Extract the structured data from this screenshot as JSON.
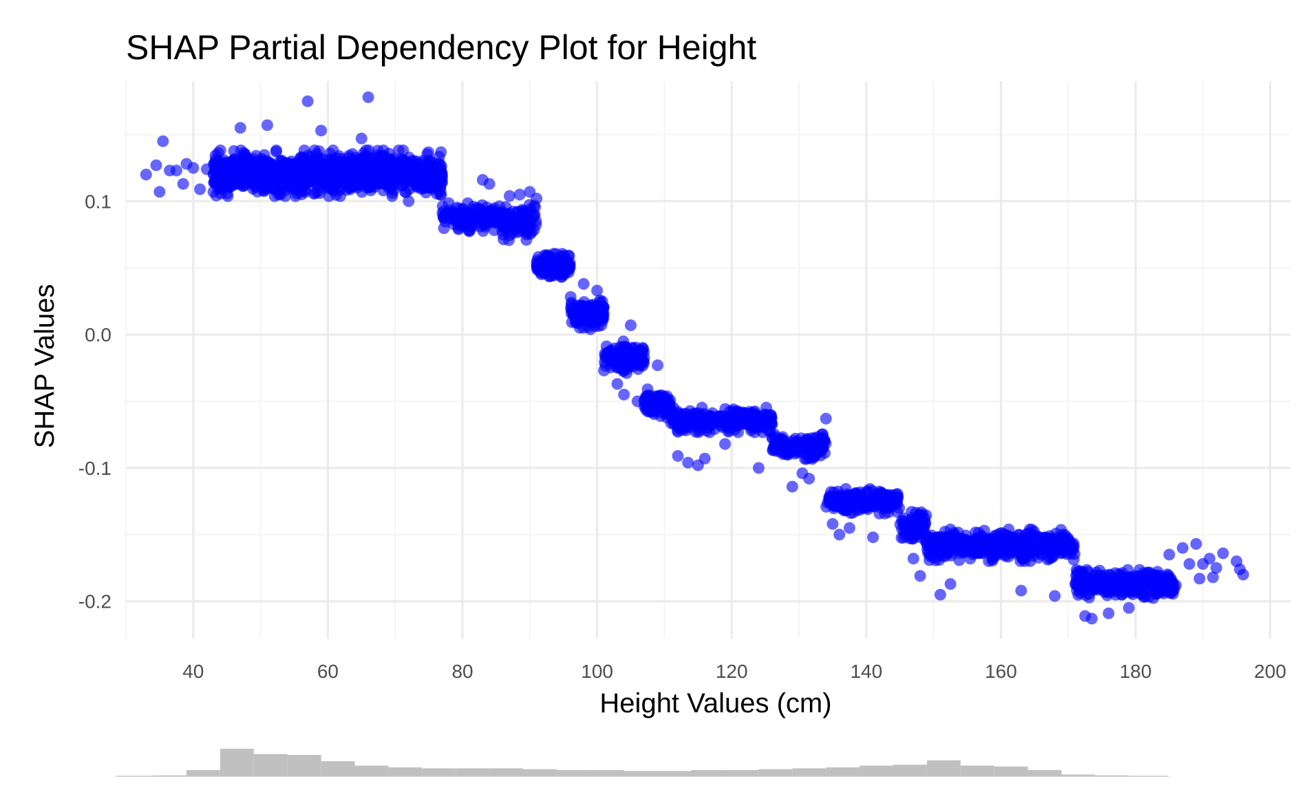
{
  "chart_data": {
    "type": "scatter",
    "title": "SHAP Partial Dependency Plot for Height",
    "xlabel": "Height Values (cm)",
    "ylabel": "SHAP Values",
    "xlim": [
      30,
      203
    ],
    "ylim": [
      -0.228,
      0.19
    ],
    "x_ticks": [
      40,
      60,
      80,
      100,
      120,
      140,
      160,
      180,
      200
    ],
    "x_tick_labels": [
      "40",
      "60",
      "80",
      "100",
      "120",
      "140",
      "160",
      "180",
      "200"
    ],
    "y_ticks": [
      0.1,
      0.0,
      -0.1,
      -0.2
    ],
    "y_tick_labels": [
      "0.1",
      "0.0",
      "-0.1",
      "-0.2"
    ],
    "grid": true,
    "point_color": "#0000ff",
    "point_opacity": 0.6,
    "series": [
      {
        "values_summary": "dense point cloud following a stepwise decreasing trend",
        "segments": [
          {
            "x_range": [
              43,
              77
            ],
            "y_center": 0.121,
            "y_spread": 0.013,
            "n": 1100
          },
          {
            "x_range": [
              77,
              86
            ],
            "y_center": 0.088,
            "y_spread": 0.008,
            "n": 160
          },
          {
            "x_range": [
              86,
              91
            ],
            "y_center": 0.084,
            "y_spread": 0.01,
            "n": 100
          },
          {
            "x_range": [
              91,
              96
            ],
            "y_center": 0.052,
            "y_spread": 0.007,
            "n": 140
          },
          {
            "x_range": [
              96,
              101
            ],
            "y_center": 0.017,
            "y_spread": 0.009,
            "n": 140
          },
          {
            "x_range": [
              101,
              107
            ],
            "y_center": -0.017,
            "y_spread": 0.009,
            "n": 130
          },
          {
            "x_range": [
              107,
              111
            ],
            "y_center": -0.053,
            "y_spread": 0.007,
            "n": 100
          },
          {
            "x_range": [
              111,
              126
            ],
            "y_center": -0.064,
            "y_spread": 0.007,
            "n": 260
          },
          {
            "x_range": [
              126,
              134
            ],
            "y_center": -0.084,
            "y_spread": 0.007,
            "n": 150
          },
          {
            "x_range": [
              134,
              145
            ],
            "y_center": -0.125,
            "y_spread": 0.007,
            "n": 190
          },
          {
            "x_range": [
              145,
              149
            ],
            "y_center": -0.145,
            "y_spread": 0.01,
            "n": 60
          },
          {
            "x_range": [
              149,
              171
            ],
            "y_center": -0.158,
            "y_spread": 0.009,
            "n": 460
          },
          {
            "x_range": [
              171,
              186
            ],
            "y_center": -0.187,
            "y_spread": 0.008,
            "n": 260
          }
        ],
        "extra_points": [
          {
            "x": 33,
            "y": 0.12
          },
          {
            "x": 34.5,
            "y": 0.127
          },
          {
            "x": 35,
            "y": 0.107
          },
          {
            "x": 35.5,
            "y": 0.145
          },
          {
            "x": 36.5,
            "y": 0.123
          },
          {
            "x": 37.5,
            "y": 0.123
          },
          {
            "x": 38.5,
            "y": 0.113
          },
          {
            "x": 39,
            "y": 0.128
          },
          {
            "x": 40,
            "y": 0.125
          },
          {
            "x": 41,
            "y": 0.109
          },
          {
            "x": 42,
            "y": 0.124
          },
          {
            "x": 43,
            "y": 0.107
          },
          {
            "x": 57,
            "y": 0.175
          },
          {
            "x": 66,
            "y": 0.178
          },
          {
            "x": 47,
            "y": 0.155
          },
          {
            "x": 51,
            "y": 0.157
          },
          {
            "x": 59,
            "y": 0.153
          },
          {
            "x": 65,
            "y": 0.147
          },
          {
            "x": 72,
            "y": 0.1
          },
          {
            "x": 83,
            "y": 0.116
          },
          {
            "x": 84,
            "y": 0.113
          },
          {
            "x": 87,
            "y": 0.104
          },
          {
            "x": 88.5,
            "y": 0.105
          },
          {
            "x": 90,
            "y": 0.107
          },
          {
            "x": 91,
            "y": 0.102
          },
          {
            "x": 86,
            "y": 0.075
          },
          {
            "x": 89.5,
            "y": 0.071
          },
          {
            "x": 98,
            "y": 0.038
          },
          {
            "x": 100,
            "y": 0.033
          },
          {
            "x": 99,
            "y": 0.004
          },
          {
            "x": 105,
            "y": 0.007
          },
          {
            "x": 103,
            "y": -0.037
          },
          {
            "x": 104,
            "y": -0.045
          },
          {
            "x": 106,
            "y": -0.05
          },
          {
            "x": 107.5,
            "y": -0.041
          },
          {
            "x": 109,
            "y": -0.023
          },
          {
            "x": 112,
            "y": -0.091
          },
          {
            "x": 113.5,
            "y": -0.096
          },
          {
            "x": 115,
            "y": -0.098
          },
          {
            "x": 116,
            "y": -0.093
          },
          {
            "x": 119,
            "y": -0.082
          },
          {
            "x": 124,
            "y": -0.1
          },
          {
            "x": 129,
            "y": -0.114
          },
          {
            "x": 130.5,
            "y": -0.104
          },
          {
            "x": 131.5,
            "y": -0.108
          },
          {
            "x": 134,
            "y": -0.063
          },
          {
            "x": 135,
            "y": -0.142
          },
          {
            "x": 136,
            "y": -0.15
          },
          {
            "x": 137.5,
            "y": -0.145
          },
          {
            "x": 141,
            "y": -0.152
          },
          {
            "x": 147,
            "y": -0.168
          },
          {
            "x": 148,
            "y": -0.181
          },
          {
            "x": 151,
            "y": -0.195
          },
          {
            "x": 152.5,
            "y": -0.187
          },
          {
            "x": 163,
            "y": -0.192
          },
          {
            "x": 168,
            "y": -0.196
          },
          {
            "x": 172.5,
            "y": -0.211
          },
          {
            "x": 173.5,
            "y": -0.213
          },
          {
            "x": 176,
            "y": -0.209
          },
          {
            "x": 179,
            "y": -0.205
          },
          {
            "x": 185,
            "y": -0.165
          },
          {
            "x": 187,
            "y": -0.16
          },
          {
            "x": 188,
            "y": -0.172
          },
          {
            "x": 189,
            "y": -0.157
          },
          {
            "x": 190,
            "y": -0.172
          },
          {
            "x": 191,
            "y": -0.168
          },
          {
            "x": 192,
            "y": -0.175
          },
          {
            "x": 193,
            "y": -0.164
          },
          {
            "x": 195,
            "y": -0.17
          },
          {
            "x": 195.5,
            "y": -0.176
          },
          {
            "x": 196,
            "y": -0.18
          },
          {
            "x": 186,
            "y": -0.188
          },
          {
            "x": 189.5,
            "y": -0.183
          },
          {
            "x": 191.5,
            "y": -0.182
          },
          {
            "x": 184,
            "y": -0.193
          }
        ]
      }
    ],
    "histogram": {
      "description": "marginal distribution of height values",
      "bins": [
        {
          "x0": 34,
          "x1": 39,
          "count": 1
        },
        {
          "x0": 39,
          "x1": 44,
          "count": 7
        },
        {
          "x0": 44,
          "x1": 49,
          "count": 31
        },
        {
          "x0": 49,
          "x1": 54,
          "count": 25
        },
        {
          "x0": 54,
          "x1": 59,
          "count": 24
        },
        {
          "x0": 59,
          "x1": 64,
          "count": 17
        },
        {
          "x0": 64,
          "x1": 69,
          "count": 12
        },
        {
          "x0": 69,
          "x1": 74,
          "count": 10
        },
        {
          "x0": 74,
          "x1": 79,
          "count": 9
        },
        {
          "x0": 79,
          "x1": 84,
          "count": 9
        },
        {
          "x0": 84,
          "x1": 89,
          "count": 9
        },
        {
          "x0": 89,
          "x1": 94,
          "count": 8
        },
        {
          "x0": 94,
          "x1": 99,
          "count": 7
        },
        {
          "x0": 99,
          "x1": 104,
          "count": 7
        },
        {
          "x0": 104,
          "x1": 109,
          "count": 6
        },
        {
          "x0": 109,
          "x1": 114,
          "count": 6
        },
        {
          "x0": 114,
          "x1": 119,
          "count": 7
        },
        {
          "x0": 119,
          "x1": 124,
          "count": 7
        },
        {
          "x0": 124,
          "x1": 129,
          "count": 8
        },
        {
          "x0": 129,
          "x1": 134,
          "count": 9
        },
        {
          "x0": 134,
          "x1": 139,
          "count": 10
        },
        {
          "x0": 139,
          "x1": 144,
          "count": 12
        },
        {
          "x0": 144,
          "x1": 149,
          "count": 13
        },
        {
          "x0": 149,
          "x1": 154,
          "count": 18
        },
        {
          "x0": 154,
          "x1": 159,
          "count": 12
        },
        {
          "x0": 159,
          "x1": 164,
          "count": 11
        },
        {
          "x0": 164,
          "x1": 169,
          "count": 7
        },
        {
          "x0": 169,
          "x1": 174,
          "count": 2
        },
        {
          "x0": 174,
          "x1": 179,
          "count": 1
        }
      ],
      "color": "#c0c0c0"
    }
  }
}
